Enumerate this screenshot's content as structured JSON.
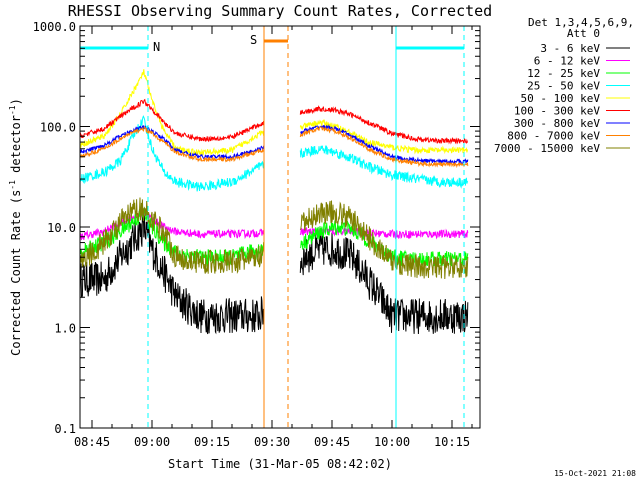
{
  "chart_data": {
    "type": "line",
    "title": "RHESSI Observing Summary Count Rates, Corrected",
    "xlabel": "Start Time (31-Mar-05 08:42:02)",
    "ylabel": "Corrected Count Rate (s",
    "ylabel_sup1": "-1",
    "ylabel_mid": " detector",
    "ylabel_sup2": "-1",
    "ylabel_end": ")",
    "yscale": "log",
    "ylim": [
      0.1,
      1000
    ],
    "xlim": [
      "08:42",
      "10:22"
    ],
    "xticks": [
      "08:45",
      "09:00",
      "09:15",
      "09:30",
      "09:45",
      "10:00",
      "10:15"
    ],
    "yticks": [
      "0.1",
      "1.0",
      "10.0",
      "100.0",
      "1000.0"
    ],
    "timestamp": "15-Oct-2021 21:08",
    "legend_header": [
      "Det 1,3,4,5,6,9,",
      "Att 0"
    ],
    "legend_position": "right",
    "markers": {
      "night_label": "N",
      "saa_label": "S",
      "night": [
        {
          "start": "08:42",
          "end": "08:59"
        },
        {
          "start": "10:01",
          "end": "10:18"
        }
      ],
      "saa": [
        {
          "start": "09:28",
          "end": "09:34"
        }
      ],
      "gaps": [
        {
          "start": "09:28",
          "end": "09:37"
        }
      ]
    },
    "series": [
      {
        "name": "3 - 6 keV",
        "color": "#000000",
        "times": [
          "08:42",
          "08:48",
          "08:52",
          "08:56",
          "08:58",
          "09:00",
          "09:03",
          "09:06",
          "09:12",
          "09:20",
          "09:27",
          "09:38",
          "09:42",
          "09:46",
          "09:50",
          "09:54",
          "10:00",
          "10:06",
          "10:12",
          "10:19"
        ],
        "values": [
          3,
          3,
          5,
          8,
          10,
          6,
          3.5,
          2,
          1.3,
          1.3,
          1.3,
          5,
          6,
          6,
          5,
          3,
          1.3,
          1.3,
          1.3,
          1.3
        ],
        "noise": 0.18
      },
      {
        "name": "6 - 12 keV",
        "color": "#ff00ff",
        "times": [
          "08:42",
          "08:48",
          "08:52",
          "08:56",
          "08:58",
          "09:00",
          "09:03",
          "09:06",
          "09:12",
          "09:20",
          "09:27",
          "09:38",
          "09:42",
          "09:46",
          "09:50",
          "09:54",
          "10:00",
          "10:06",
          "10:12",
          "10:19"
        ],
        "values": [
          8,
          9,
          11,
          13,
          14,
          12,
          10,
          9,
          8.5,
          8.5,
          8.7,
          9,
          9,
          9,
          9,
          8.7,
          8.5,
          8.5,
          8.5,
          8.5
        ],
        "noise": 0.04
      },
      {
        "name": "12 - 25 keV",
        "color": "#00ff00",
        "times": [
          "08:42",
          "08:48",
          "08:52",
          "08:56",
          "08:58",
          "09:00",
          "09:03",
          "09:06",
          "09:12",
          "09:20",
          "09:27",
          "09:38",
          "09:42",
          "09:46",
          "09:50",
          "09:54",
          "10:00",
          "10:06",
          "10:12",
          "10:19"
        ],
        "values": [
          5.5,
          7,
          9,
          12,
          14,
          10,
          7,
          5.5,
          5,
          5,
          6,
          7,
          9,
          10,
          9.5,
          7.5,
          5,
          4.8,
          4.8,
          4.8
        ],
        "noise": 0.08
      },
      {
        "name": "25 - 50 keV",
        "color": "#00ffff",
        "times": [
          "08:42",
          "08:48",
          "08:52",
          "08:56",
          "08:58",
          "09:00",
          "09:03",
          "09:06",
          "09:12",
          "09:20",
          "09:27",
          "09:38",
          "09:42",
          "09:46",
          "09:50",
          "09:54",
          "10:00",
          "10:06",
          "10:12",
          "10:19"
        ],
        "values": [
          30,
          35,
          45,
          90,
          120,
          60,
          35,
          28,
          25,
          28,
          40,
          55,
          60,
          55,
          48,
          40,
          33,
          30,
          28,
          28
        ],
        "noise": 0.05
      },
      {
        "name": "50 - 100 keV",
        "color": "#ffff00",
        "times": [
          "08:42",
          "08:48",
          "08:52",
          "08:56",
          "08:58",
          "09:00",
          "09:03",
          "09:06",
          "09:12",
          "09:20",
          "09:27",
          "09:38",
          "09:42",
          "09:46",
          "09:50",
          "09:54",
          "10:00",
          "10:06",
          "10:12",
          "10:19"
        ],
        "values": [
          65,
          80,
          130,
          250,
          350,
          180,
          90,
          60,
          55,
          58,
          85,
          100,
          110,
          100,
          85,
          70,
          62,
          58,
          58,
          58
        ],
        "noise": 0.03
      },
      {
        "name": "100 - 300 keV",
        "color": "#ff0000",
        "times": [
          "08:42",
          "08:48",
          "08:52",
          "08:56",
          "08:58",
          "09:00",
          "09:03",
          "09:06",
          "09:12",
          "09:20",
          "09:27",
          "09:38",
          "09:42",
          "09:46",
          "09:50",
          "09:54",
          "10:00",
          "10:06",
          "10:12",
          "10:19"
        ],
        "values": [
          80,
          95,
          125,
          160,
          180,
          150,
          110,
          85,
          75,
          78,
          105,
          140,
          150,
          145,
          130,
          110,
          85,
          75,
          72,
          72
        ],
        "noise": 0.025
      },
      {
        "name": "300 - 800 keV",
        "color": "#0000ff",
        "times": [
          "08:42",
          "08:48",
          "08:52",
          "08:56",
          "08:58",
          "09:00",
          "09:03",
          "09:06",
          "09:12",
          "09:20",
          "09:27",
          "09:38",
          "09:42",
          "09:46",
          "09:50",
          "09:54",
          "10:00",
          "10:06",
          "10:12",
          "10:19"
        ],
        "values": [
          55,
          65,
          80,
          95,
          98,
          90,
          75,
          58,
          50,
          50,
          60,
          90,
          100,
          95,
          80,
          65,
          50,
          46,
          45,
          45
        ],
        "noise": 0.02
      },
      {
        "name": "800 - 7000 keV",
        "color": "#ff8000",
        "times": [
          "08:42",
          "08:48",
          "08:52",
          "08:56",
          "08:58",
          "09:00",
          "09:03",
          "09:06",
          "09:12",
          "09:20",
          "09:27",
          "09:38",
          "09:42",
          "09:46",
          "09:50",
          "09:54",
          "10:00",
          "10:06",
          "10:12",
          "10:19"
        ],
        "values": [
          50,
          60,
          75,
          90,
          95,
          85,
          70,
          55,
          47,
          47,
          57,
          85,
          95,
          90,
          75,
          60,
          47,
          43,
          42,
          42
        ],
        "noise": 0.02
      },
      {
        "name": "7000 - 15000 keV",
        "color": "#808000",
        "times": [
          "08:42",
          "08:48",
          "08:52",
          "08:56",
          "08:58",
          "09:00",
          "09:03",
          "09:06",
          "09:12",
          "09:20",
          "09:27",
          "09:38",
          "09:42",
          "09:46",
          "09:50",
          "09:54",
          "10:00",
          "10:06",
          "10:12",
          "10:19"
        ],
        "values": [
          4.5,
          7,
          11,
          15,
          15,
          12,
          9,
          5,
          4.5,
          4.5,
          5,
          11,
          14,
          14,
          12,
          8,
          4.5,
          4,
          4,
          4
        ],
        "noise": 0.12
      }
    ]
  }
}
